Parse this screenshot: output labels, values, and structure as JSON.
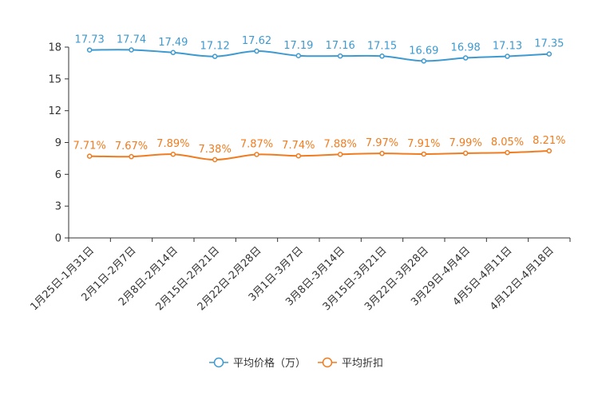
{
  "chart_data": {
    "type": "line",
    "title": "",
    "xlabel": "",
    "ylabel": "",
    "ylim": [
      0,
      18
    ],
    "yticks": [
      0,
      3,
      6,
      9,
      12,
      15,
      18
    ],
    "grid": false,
    "legend_position": "bottom-center",
    "categories": [
      "1月25日-1月31日",
      "2月1日-2月7日",
      "2月8日-2月14日",
      "2月15日-2月21日",
      "2月22日-2月28日",
      "3月1日-3月7日",
      "3月8日-3月14日",
      "3月15日-3月21日",
      "3月22日-3月28日",
      "3月29日-4月4日",
      "4月5日-4月11日",
      "4月12日-4月18日"
    ],
    "series": [
      {
        "name": "平均价格（万）",
        "color": "#3d9ad1",
        "values": [
          17.73,
          17.74,
          17.49,
          17.12,
          17.62,
          17.19,
          17.16,
          17.15,
          16.69,
          16.98,
          17.13,
          17.35
        ],
        "labels": [
          "17.73",
          "17.74",
          "17.49",
          "17.12",
          "17.62",
          "17.19",
          "17.16",
          "17.15",
          "16.69",
          "16.98",
          "17.13",
          "17.35"
        ]
      },
      {
        "name": "平均折扣",
        "color": "#f07c1f",
        "values": [
          7.71,
          7.67,
          7.89,
          7.38,
          7.87,
          7.74,
          7.88,
          7.97,
          7.91,
          7.99,
          8.05,
          8.21
        ],
        "labels": [
          "7.71%",
          "7.67%",
          "7.89%",
          "7.38%",
          "7.87%",
          "7.74%",
          "7.88%",
          "7.97%",
          "7.91%",
          "7.99%",
          "8.05%",
          "8.21%"
        ]
      }
    ]
  }
}
